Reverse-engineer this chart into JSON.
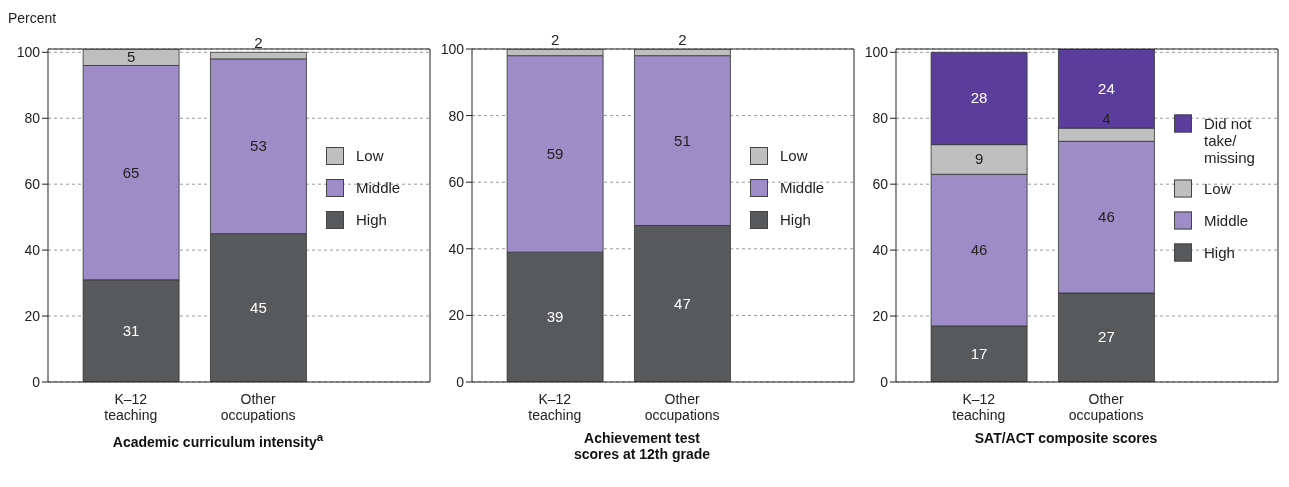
{
  "chart_data": [
    {
      "type": "bar",
      "title": "Academic curriculum intensity$^{a}$",
      "ylabel": "Percent",
      "categories": [
        "K–12 teaching",
        "Other occupations"
      ],
      "stacked": true,
      "data_labels": true,
      "ylim": [
        0,
        101
      ],
      "yticks": [
        0,
        20,
        40,
        60,
        80,
        100
      ],
      "grid": "y",
      "legend": "right",
      "series": [
        {
          "name": "High",
          "color": "#58595b",
          "values": [
            31,
            45
          ]
        },
        {
          "name": "Middle",
          "color": "#9e8cc6",
          "values": [
            65,
            53
          ]
        },
        {
          "name": "Low",
          "color": "#bfbfbf",
          "values": [
            5,
            2
          ]
        }
      ]
    },
    {
      "type": "bar",
      "title": "Achievement test scores at 12th grade",
      "categories": [
        "K–12 teaching",
        "Other occupations"
      ],
      "stacked": true,
      "data_labels": true,
      "ylim": [
        0,
        100
      ],
      "yticks": [
        0,
        20,
        40,
        60,
        80,
        100
      ],
      "grid": "y",
      "legend": "right",
      "series": [
        {
          "name": "High",
          "color": "#58595b",
          "values": [
            39,
            47
          ]
        },
        {
          "name": "Middle",
          "color": "#9e8cc6",
          "values": [
            59,
            51
          ]
        },
        {
          "name": "Low",
          "color": "#bfbfbf",
          "values": [
            2,
            2
          ]
        }
      ]
    },
    {
      "type": "bar",
      "title": "SAT/ACT composite scores",
      "categories": [
        "K–12 teaching",
        "Other occupations"
      ],
      "stacked": true,
      "data_labels": true,
      "ylim": [
        0,
        101
      ],
      "yticks": [
        0,
        20,
        40,
        60,
        80,
        100
      ],
      "grid": "y",
      "legend": "right",
      "series": [
        {
          "name": "High",
          "color": "#58595b",
          "values": [
            17,
            27
          ]
        },
        {
          "name": "Middle",
          "color": "#9e8cc6",
          "values": [
            46,
            46
          ]
        },
        {
          "name": "Low",
          "color": "#bfbfbf",
          "values": [
            9,
            4
          ]
        },
        {
          "name": "Did not take/ missing",
          "color": "#5b3e9b",
          "values": [
            28,
            24
          ]
        }
      ]
    }
  ]
}
